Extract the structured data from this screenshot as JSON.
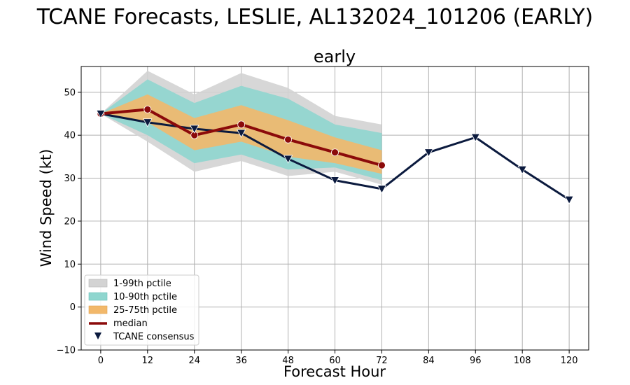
{
  "figure_title": "TCANE Forecasts, LESLIE, AL132024_101206 (EARLY)",
  "chart_data": {
    "type": "line",
    "title": "early",
    "xlabel": "Forecast Hour",
    "ylabel": "Wind Speed (kt)",
    "xlim": [
      -5,
      125
    ],
    "ylim": [
      -10,
      56
    ],
    "grid": true,
    "legend_position": "lower-left",
    "x_ticks": [
      0,
      12,
      24,
      36,
      48,
      60,
      72,
      84,
      96,
      108,
      120
    ],
    "y_ticks": [
      -10,
      0,
      10,
      20,
      30,
      40,
      50
    ],
    "x_tick_labels": [
      "0",
      "12",
      "24",
      "36",
      "48",
      "60",
      "72",
      "84",
      "96",
      "108",
      "120"
    ],
    "y_tick_labels": [
      "−10",
      "0",
      "10",
      "20",
      "30",
      "40",
      "50"
    ],
    "colors": {
      "band_1_99": "#d3d3d3",
      "band_10_90": "#8fd6cf",
      "band_25_75": "#f2b86a",
      "median": "#8b0a0a",
      "consensus": "#0b1a3e",
      "grid": "#b0b0b0"
    },
    "bands": {
      "x": [
        0,
        12,
        24,
        36,
        48,
        60,
        72
      ],
      "p1": [
        45,
        38.5,
        31.5,
        34,
        30.5,
        31.5,
        28.5
      ],
      "p10": [
        45,
        40,
        33.5,
        35.5,
        32,
        32.5,
        29.5
      ],
      "p25": [
        45,
        43,
        36.5,
        38.5,
        35,
        33.5,
        31
      ],
      "p75": [
        45,
        49.5,
        44,
        47,
        43.5,
        39.5,
        36.5
      ],
      "p90": [
        45,
        53,
        47.5,
        51.5,
        48.5,
        42.5,
        40.5
      ],
      "p99": [
        45,
        55,
        49.5,
        54.5,
        51,
        44.5,
        42.5
      ]
    },
    "median": {
      "name": "median",
      "x": [
        0,
        12,
        24,
        36,
        48,
        60,
        72
      ],
      "values": [
        45,
        46,
        40,
        42.5,
        39,
        36,
        33
      ]
    },
    "consensus": {
      "name": "TCANE consensus",
      "x": [
        0,
        12,
        24,
        36,
        48,
        60,
        72,
        84,
        96,
        108,
        120
      ],
      "values": [
        45,
        43,
        41.5,
        40.5,
        34.5,
        29.5,
        27.5,
        36,
        39.5,
        32,
        25
      ]
    },
    "legend": [
      "1-99th pctile",
      "10-90th pctile",
      "25-75th pctile",
      "median",
      "TCANE consensus"
    ]
  }
}
